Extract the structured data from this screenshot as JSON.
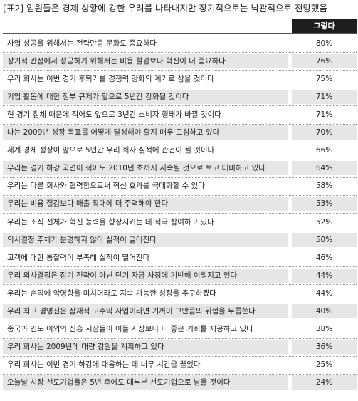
{
  "title": "[표2] 임원들은 경제 상황에 강한 우려를 나타내지만 장기적으로는 낙관적으로 전망했음",
  "chart_data": {
    "type": "table",
    "columns": [
      "",
      "그렇다"
    ],
    "rows": [
      {
        "label": "사업 성공을 위해서는 전략만큼 문화도 중요하다",
        "display": "80%",
        "value": 80
      },
      {
        "label": "장기적 관점에서 성공하기 위해서는 비용 절감보다 혁신이 더 중요하다",
        "display": "76%",
        "value": 76
      },
      {
        "label": "우리 회사는 이번 경기 후퇴기를 경쟁력 강화의 계기로 삼을 것이다",
        "display": "75%",
        "value": 75
      },
      {
        "label": "기업 활동에 대한 정부 규제가 앞으로 5년간 강화될 것이다",
        "display": "71%",
        "value": 71
      },
      {
        "label": "현 경기 침체 때문에 적어도 앞으로 3년간 소비자 행태가 바뀔 것이다",
        "display": "71%",
        "value": 71
      },
      {
        "label": "나는 2009년 성장 목표를 어떻게 달성해야 할지 매우 고심하고 있다",
        "display": "70%",
        "value": 70
      },
      {
        "label": "세계 경제 성장이 앞으로 5년간 우리 회사 실적에 관건이 될 것이다",
        "display": "66%",
        "value": 66
      },
      {
        "label": "우리는 경기 하강 국면이 적어도 2010년 초까지 지속될 것으로 보고 대비하고 있다",
        "display": "64%",
        "value": 64
      },
      {
        "label": "우리는 다른 회사와 협력함으로써 혁신 효과를 극대화할 수 있다",
        "display": "58%",
        "value": 58
      },
      {
        "label": "우리는 비용 절감보다 매출 확대에 더 주력해야 한다",
        "display": "53%",
        "value": 53
      },
      {
        "label": "우리는 조직 전체가 혁신 능력을 향상시키는 데 적극 참여하고 있다",
        "display": "52%",
        "value": 52
      },
      {
        "label": "의사결정 주체가 분명하지 않아 실적이 떨어진다",
        "display": "50%",
        "value": 50
      },
      {
        "label": "고객에 대한 통찰력이 부족해 실적이 떨어진다",
        "display": "46%",
        "value": 46
      },
      {
        "label": "우리 의사결정은 장기 전략이 아닌 단기 자금 사정에 기반해 이뤄지고 있다",
        "display": "44%",
        "value": 44
      },
      {
        "label": "우리는 손익에 악영향을 미치더라도 지속 가능한 성장을 추구하겠다",
        "display": "44%",
        "value": 44
      },
      {
        "label": "우리 최고 경영진은 잠재적 고수익 사업이라면 기꺼이 그만큼의 위험을 무릅쓴다",
        "display": "40%",
        "value": 40
      },
      {
        "label": "중국과 인도 이외의 신흥 시장들이 이들 시장보다 더 좋은 기회를 제공하고 있다",
        "display": "38%",
        "value": 38
      },
      {
        "label": "우리 회사는 2009년에 대량 감원을 계획하고 있다",
        "display": "36%",
        "value": 36
      },
      {
        "label": "우리 회사는 이번 경기 하강에 대응하는 데 너무 시간을 끌었다",
        "display": "25%",
        "value": 25
      },
      {
        "label": "오늘날 시장 선도기업들은 5년 후에도 대부분 선도기업으로 남을 것이다",
        "display": "24%",
        "value": 24
      }
    ]
  },
  "colors": {
    "header_bg": "#1e1e1e",
    "header_text": "#ffffff",
    "shade": "#e6e6e6",
    "text": "#222222"
  }
}
